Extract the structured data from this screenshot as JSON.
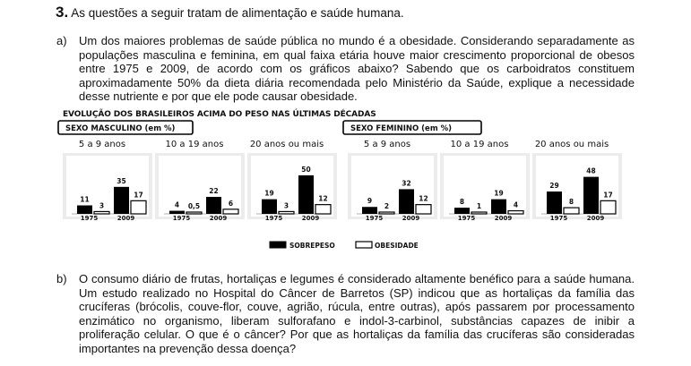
{
  "question": {
    "number": "3.",
    "intro": "As questões a seguir tratam de alimentação e saúde humana."
  },
  "part_a": {
    "label": "a)",
    "text": "Um dos maiores problemas de saúde pública no mundo é a obesidade. Considerando separadamente as populações masculina e feminina, em qual faixa etária houve maior crescimento proporcional de obesos entre 1975 e 2009, de acordo com os gráficos abaixo? Sabendo que os carboidratos constituem aproximadamente 50% da dieta diária recomendada pelo Ministério da Saúde, explique a necessidade desse nutriente e por que ele pode causar obesidade."
  },
  "part_b": {
    "label": "b)",
    "text": "O consumo diário de frutas, hortaliças e legumes é considerado altamente benéfico para a saúde humana. Um estudo realizado no Hospital do Câncer de Barretos (SP) indicou que as hortaliças da família das crucíferas (brócolis, couve-flor, couve, agrião, rúcula, entre outras), após passarem por processamento enzimático no organismo, liberam sulforafano e indol-3-carbinol, substâncias capazes de inibir a proliferação celular. O que é o câncer? Por que as hortaliças da família das crucíferas são consideradas importantes na prevenção dessa doença?"
  },
  "chart_data": {
    "type": "bar",
    "title": "EVOLUÇÃO DOS BRASILEIROS ACIMA DO PESO NAS ÚLTIMAS DÉCADAS",
    "categories": [
      "1975",
      "2009"
    ],
    "legend": [
      {
        "name": "SOBREPESO",
        "color": "#000000"
      },
      {
        "name": "OBESIDADE",
        "color": "#ffffff"
      }
    ],
    "groups": [
      {
        "name": "SEXO MASCULINO (em %)",
        "panels": [
          {
            "title": "5 a 9 anos",
            "series": [
              {
                "name": "SOBREPESO",
                "values": [
                  11,
                  35
                ],
                "labels": [
                  "11",
                  "35"
                ]
              },
              {
                "name": "OBESIDADE",
                "values": [
                  3,
                  17
                ],
                "labels": [
                  "3",
                  "17"
                ]
              }
            ]
          },
          {
            "title": "10 a 19 anos",
            "series": [
              {
                "name": "SOBREPESO",
                "values": [
                  4,
                  22
                ],
                "labels": [
                  "4",
                  "22"
                ]
              },
              {
                "name": "OBESIDADE",
                "values": [
                  0.5,
                  6
                ],
                "labels": [
                  "0,5",
                  "6"
                ]
              }
            ]
          },
          {
            "title": "20 anos ou mais",
            "series": [
              {
                "name": "SOBREPESO",
                "values": [
                  19,
                  50
                ],
                "labels": [
                  "19",
                  "50"
                ]
              },
              {
                "name": "OBESIDADE",
                "values": [
                  3,
                  12
                ],
                "labels": [
                  "3",
                  "12"
                ]
              }
            ]
          }
        ]
      },
      {
        "name": "SEXO FEMININO (em %)",
        "panels": [
          {
            "title": "5 a 9 anos",
            "series": [
              {
                "name": "SOBREPESO",
                "values": [
                  9,
                  32
                ],
                "labels": [
                  "9",
                  "32"
                ]
              },
              {
                "name": "OBESIDADE",
                "values": [
                  2,
                  12
                ],
                "labels": [
                  "2",
                  "12"
                ]
              }
            ]
          },
          {
            "title": "10 a 19 anos",
            "series": [
              {
                "name": "SOBREPESO",
                "values": [
                  8,
                  19
                ],
                "labels": [
                  "8",
                  "19"
                ]
              },
              {
                "name": "OBESIDADE",
                "values": [
                  1,
                  4
                ],
                "labels": [
                  "1",
                  "4"
                ]
              }
            ]
          },
          {
            "title": "20 anos ou mais",
            "series": [
              {
                "name": "SOBREPESO",
                "values": [
                  29,
                  48
                ],
                "labels": [
                  "29",
                  "48"
                ]
              },
              {
                "name": "OBESIDADE",
                "values": [
                  8,
                  17
                ],
                "labels": [
                  "8",
                  "17"
                ]
              }
            ]
          }
        ]
      }
    ]
  }
}
